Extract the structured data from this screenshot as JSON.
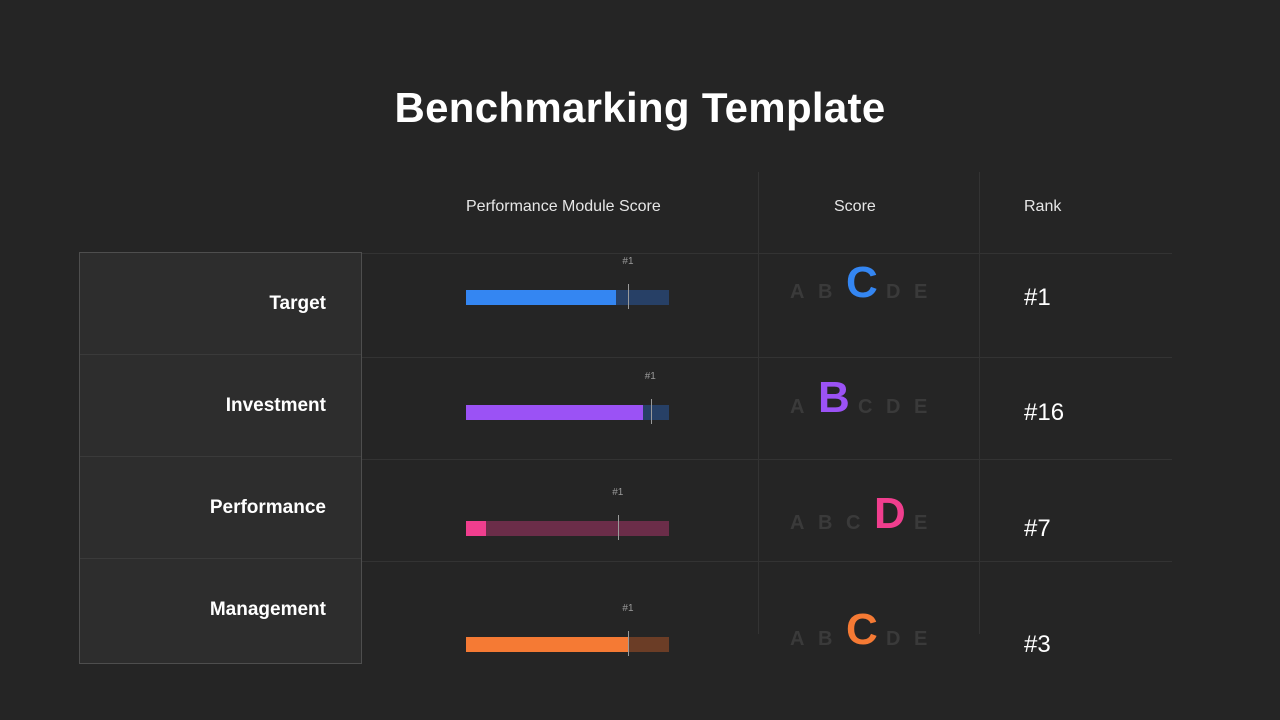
{
  "title": "Benchmarking Template",
  "headers": {
    "module_score": "Performance Module Score",
    "score": "Score",
    "rank": "Rank"
  },
  "rows": [
    {
      "label": "Target",
      "bar_fill_fraction": 0.74,
      "benchmark_fraction": 0.8,
      "benchmark_label": "#1",
      "bar_color": "#3486f2",
      "track_color": "#274066",
      "grades": [
        "A",
        "B",
        "C",
        "D",
        "E"
      ],
      "selected_grade": "C",
      "grade_color": "#3486f2",
      "rank": "#1"
    },
    {
      "label": "Investment",
      "bar_fill_fraction": 0.87,
      "benchmark_fraction": 0.91,
      "benchmark_label": "#1",
      "bar_color": "#9b52f5",
      "track_color": "#274066",
      "grades": [
        "A",
        "B",
        "C",
        "D",
        "E"
      ],
      "selected_grade": "B",
      "grade_color": "#9b52f5",
      "rank": "#16"
    },
    {
      "label": "Performance",
      "bar_fill_fraction": 0.1,
      "benchmark_fraction": 0.75,
      "benchmark_label": "#1",
      "bar_color": "#f03e8e",
      "track_color": "#6b2d49",
      "grades": [
        "A",
        "B",
        "C",
        "D",
        "E"
      ],
      "selected_grade": "D",
      "grade_color": "#f03e8e",
      "rank": "#7"
    },
    {
      "label": "Management",
      "bar_fill_fraction": 0.8,
      "benchmark_fraction": 0.8,
      "benchmark_label": "#1",
      "bar_color": "#f57a34",
      "track_color": "#6b3d26",
      "grades": [
        "A",
        "B",
        "C",
        "D",
        "E"
      ],
      "selected_grade": "C",
      "grade_color": "#f57a34",
      "rank": "#3"
    }
  ]
}
